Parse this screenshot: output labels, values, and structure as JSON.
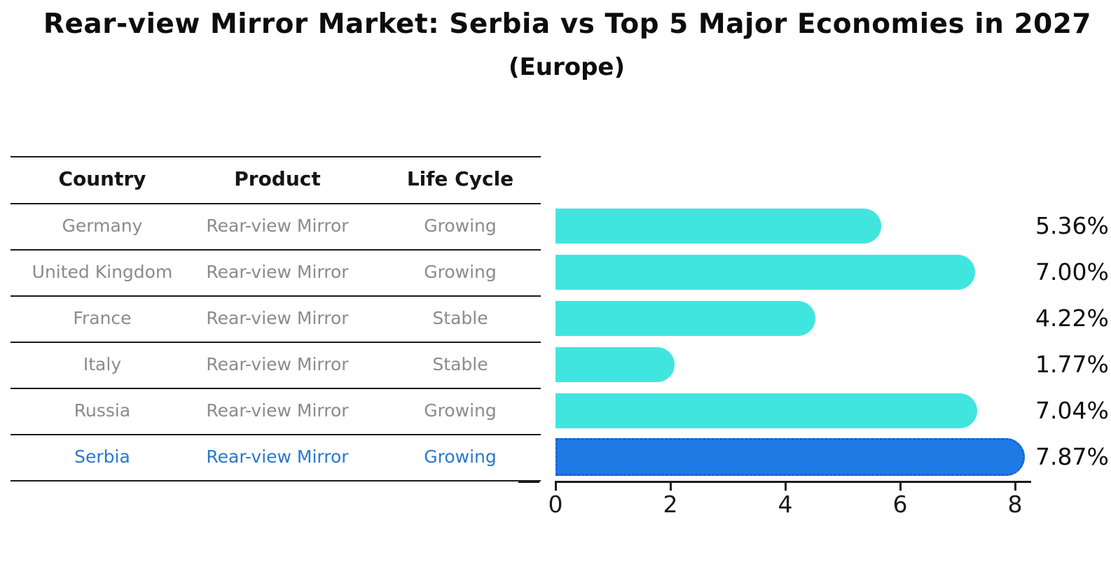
{
  "title": "Rear-view Mirror Market: Serbia vs Top 5 Major Economies in 2027",
  "subtitle": "(Europe)",
  "table": {
    "headers": {
      "country": "Country",
      "product": "Product",
      "life_cycle": "Life Cycle"
    },
    "rows": [
      {
        "country": "Germany",
        "product": "Rear-view Mirror",
        "life_cycle": "Growing",
        "value": 5.36,
        "value_label": "5.36%",
        "highlight": false
      },
      {
        "country": "United Kingdom",
        "product": "Rear-view Mirror",
        "life_cycle": "Growing",
        "value": 7.0,
        "value_label": "7.00%",
        "highlight": false
      },
      {
        "country": "France",
        "product": "Rear-view Mirror",
        "life_cycle": "Stable",
        "value": 4.22,
        "value_label": "4.22%",
        "highlight": false
      },
      {
        "country": "Italy",
        "product": "Rear-view Mirror",
        "life_cycle": "Stable",
        "value": 1.77,
        "value_label": "1.77%",
        "highlight": false
      },
      {
        "country": "Russia",
        "product": "Rear-view Mirror",
        "life_cycle": "Growing",
        "value": 7.04,
        "value_label": "7.04%",
        "highlight": false
      },
      {
        "country": "Serbia",
        "product": "Rear-view Mirror",
        "life_cycle": "Growing",
        "value": 7.87,
        "value_label": "7.87%",
        "highlight": true
      }
    ]
  },
  "chart_data": {
    "type": "bar",
    "orientation": "horizontal",
    "title": "Rear-view Mirror Market: Serbia vs Top 5 Major Economies in 2027",
    "subtitle": "(Europe)",
    "categories": [
      "Germany",
      "United Kingdom",
      "France",
      "Italy",
      "Russia",
      "Serbia"
    ],
    "values": [
      5.36,
      7.0,
      4.22,
      1.77,
      7.04,
      7.87
    ],
    "value_labels": [
      "5.36%",
      "7.00%",
      "4.22%",
      "1.77%",
      "7.04%",
      "7.87%"
    ],
    "xlabel": "",
    "ylabel": "",
    "xlim": [
      0,
      8.3
    ],
    "xticks": [
      0,
      2,
      4,
      6,
      8
    ],
    "grid": false,
    "legend": "none",
    "highlight_category": "Serbia",
    "bar_color": "#40E6DE",
    "highlight_bar_color": "#1E7AE4",
    "highlight_border_color": "#1A5FCF"
  },
  "colors": {
    "background": "#FFFFFF",
    "header_text": "#151515",
    "row_text": "#8B8B8B",
    "highlight_text": "#2878CC",
    "axis": "#1A1A1A",
    "value_label_text": "#0D0D0D"
  }
}
